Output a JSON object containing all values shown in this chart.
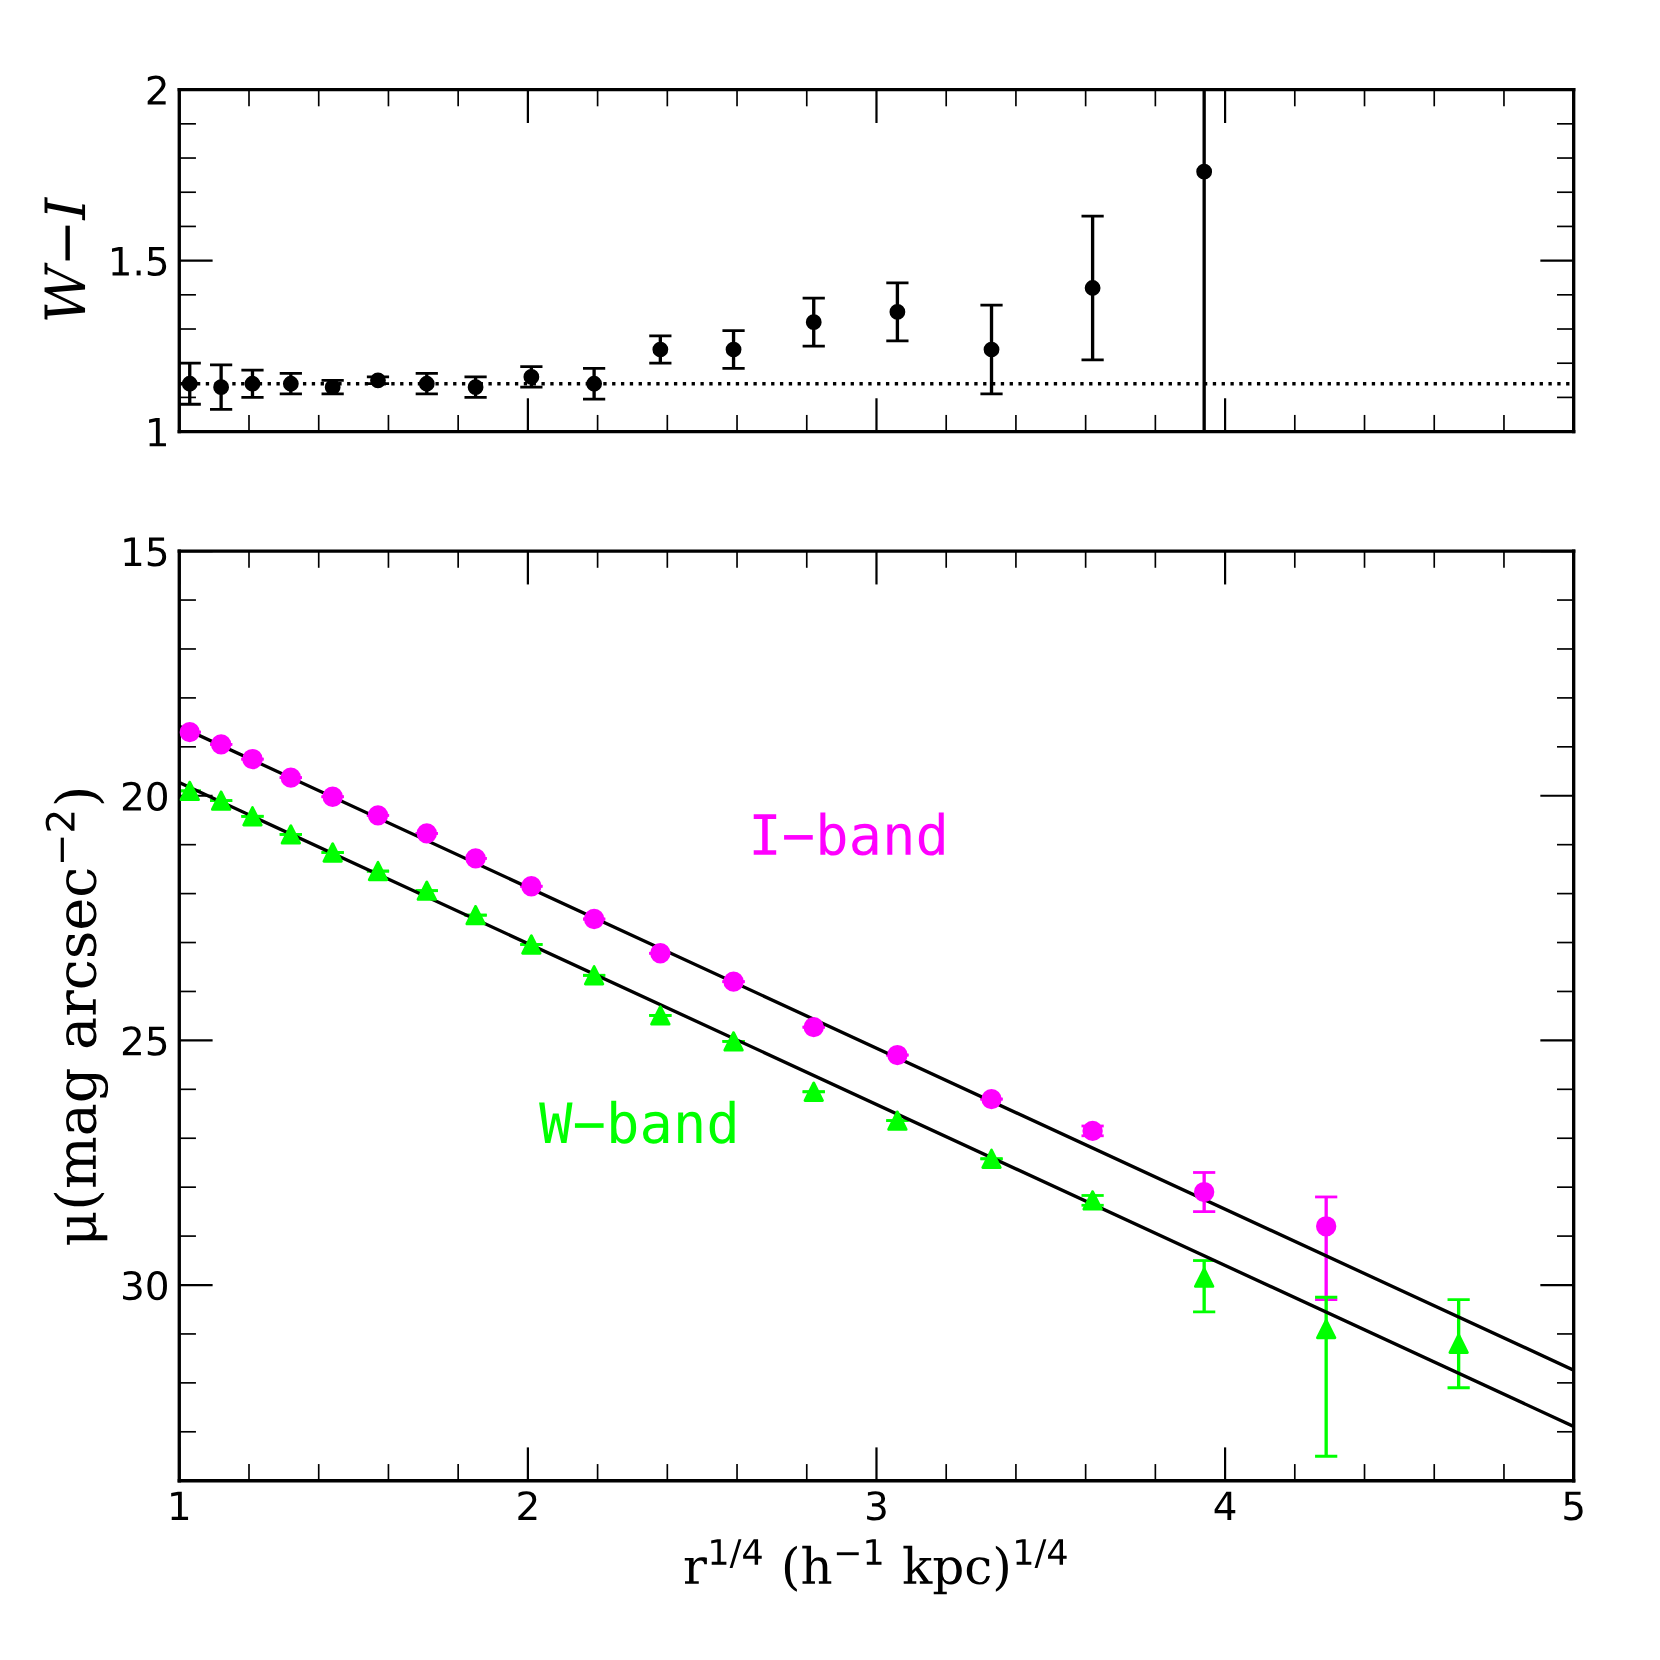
{
  "chart_data": [
    {
      "type": "scatter",
      "ylabel": "W−I",
      "xlim": [
        1,
        5
      ],
      "ylim": [
        1,
        2
      ],
      "xticks": [
        1,
        2,
        3,
        4,
        5
      ],
      "yticks": [
        1,
        1.5,
        2
      ],
      "tick_labels": "y",
      "grid": false,
      "legend": false,
      "series": [
        {
          "color": "#000000",
          "marker": "circle",
          "x": [
            1.03,
            1.12,
            1.21,
            1.32,
            1.44,
            1.57,
            1.71,
            1.85,
            2.01,
            2.19,
            2.38,
            2.59,
            2.82,
            3.06,
            3.33,
            3.62,
            3.94
          ],
          "values": [
            1.14,
            1.13,
            1.14,
            1.14,
            1.13,
            1.15,
            1.14,
            1.13,
            1.16,
            1.14,
            1.24,
            1.24,
            1.32,
            1.35,
            1.24,
            1.42,
            1.76
          ],
          "errors": [
            0.06,
            0.065,
            0.04,
            0.03,
            0.02,
            0.01,
            0.03,
            0.03,
            0.03,
            0.045,
            0.04,
            0.055,
            0.07,
            0.085,
            0.13,
            0.21,
            [
              1,
              2
            ]
          ]
        }
      ],
      "ref_lines": [
        {
          "axis": "y",
          "value": 1.14,
          "color": "#000000",
          "line_style": "dotted"
        }
      ]
    },
    {
      "type": "scatter",
      "xlabel": "r$^{1/4}$ (h$^{−1}$ kpc)$^{1/4}$",
      "ylabel": "μ(mag arcsec$^{−2}$)",
      "xlim": [
        1,
        5
      ],
      "ylim": [
        34,
        15
      ],
      "xticks": [
        1,
        2,
        3,
        4,
        5
      ],
      "yticks": [
        15,
        20,
        25,
        30
      ],
      "grid": false,
      "legend": false,
      "x": [
        1.03,
        1.12,
        1.21,
        1.32,
        1.44,
        1.57,
        1.71,
        1.85,
        2.01,
        2.19,
        2.38,
        2.59,
        2.82,
        3.06,
        3.33,
        3.62,
        3.94,
        4.29,
        4.67
      ],
      "series": [
        {
          "name": "I−band",
          "color": "#ff00ff",
          "marker": "circle",
          "values": [
            18.7,
            18.95,
            19.25,
            19.63,
            20.02,
            20.4,
            20.77,
            21.28,
            21.85,
            22.52,
            23.22,
            23.8,
            24.73,
            25.3,
            26.2,
            26.85,
            28.1,
            28.8,
            null
          ],
          "errors": [
            null,
            null,
            null,
            null,
            null,
            null,
            null,
            null,
            null,
            null,
            null,
            null,
            null,
            null,
            null,
            0.1,
            0.4,
            [
              28.2,
              30.3
            ],
            null
          ]
        },
        {
          "name": "W−band",
          "color": "#00ff00",
          "marker": "triangle",
          "values": [
            19.9,
            20.1,
            20.42,
            20.79,
            21.16,
            21.54,
            21.94,
            22.44,
            23.04,
            23.67,
            24.49,
            25.02,
            26.05,
            26.64,
            27.42,
            28.27,
            29.85,
            30.9,
            31.2
          ],
          "errors": [
            null,
            null,
            null,
            null,
            null,
            null,
            null,
            null,
            null,
            null,
            null,
            null,
            null,
            null,
            null,
            0.1,
            [
              29.5,
              30.55
            ],
            [
              30.25,
              33.5
            ],
            0.9
          ]
        },
        {
          "type": "line",
          "color": "#000000",
          "x": [
            1,
            5
          ],
          "values": [
            18.58,
            31.74
          ]
        },
        {
          "type": "line",
          "color": "#000000",
          "x": [
            1,
            5
          ],
          "values": [
            19.73,
            32.89
          ]
        }
      ]
    }
  ]
}
